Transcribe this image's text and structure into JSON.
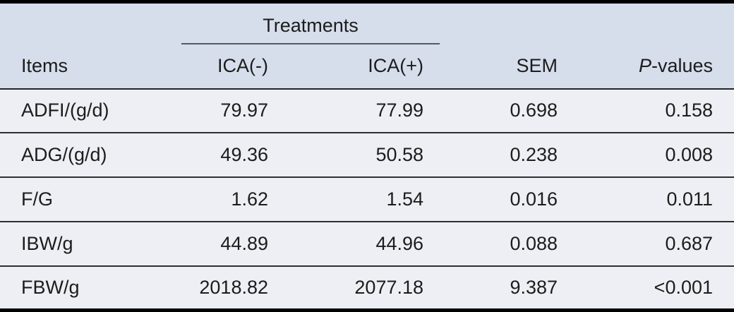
{
  "table": {
    "header": {
      "group_label": "Treatments",
      "items_label": "Items",
      "col_ica_minus": "ICA(-)",
      "col_ica_plus": "ICA(+)",
      "col_sem": "SEM",
      "col_p_italic": "P",
      "col_p_rest": "-values"
    },
    "rows": [
      {
        "item": "ADFI/(g/d)",
        "ica_minus": "79.97",
        "ica_plus": "77.99",
        "sem": "0.698",
        "p": "0.158"
      },
      {
        "item": "ADG/(g/d)",
        "ica_minus": "49.36",
        "ica_plus": "50.58",
        "sem": "0.238",
        "p": "0.008"
      },
      {
        "item": "F/G",
        "ica_minus": "1.62",
        "ica_plus": "1.54",
        "sem": "0.016",
        "p": "0.011"
      },
      {
        "item": "IBW/g",
        "ica_minus": "44.89",
        "ica_plus": "44.96",
        "sem": "0.088",
        "p": "0.687"
      },
      {
        "item": "FBW/g",
        "ica_minus": "2018.82",
        "ica_plus": "2077.18",
        "sem": "9.387",
        "p": "<0.001"
      }
    ],
    "colors": {
      "header_bg": "#d6deec",
      "body_bg": "#edeff4",
      "outer_border": "#000000",
      "row_separator": "#2e2e2e",
      "group_underline": "#565a61",
      "text": "#1c1c1c"
    }
  },
  "chart_data": {
    "type": "table",
    "title": "",
    "column_groups": [
      {
        "label": "Treatments",
        "columns": [
          "ICA(-)",
          "ICA(+)"
        ]
      }
    ],
    "columns": [
      "Items",
      "ICA(-)",
      "ICA(+)",
      "SEM",
      "P-values"
    ],
    "rows": [
      [
        "ADFI/(g/d)",
        79.97,
        77.99,
        0.698,
        "0.158"
      ],
      [
        "ADG/(g/d)",
        49.36,
        50.58,
        0.238,
        "0.008"
      ],
      [
        "F/G",
        1.62,
        1.54,
        0.016,
        "0.011"
      ],
      [
        "IBW/g",
        44.89,
        44.96,
        0.088,
        "0.687"
      ],
      [
        "FBW/g",
        2018.82,
        2077.18,
        9.387,
        "<0.001"
      ]
    ]
  }
}
